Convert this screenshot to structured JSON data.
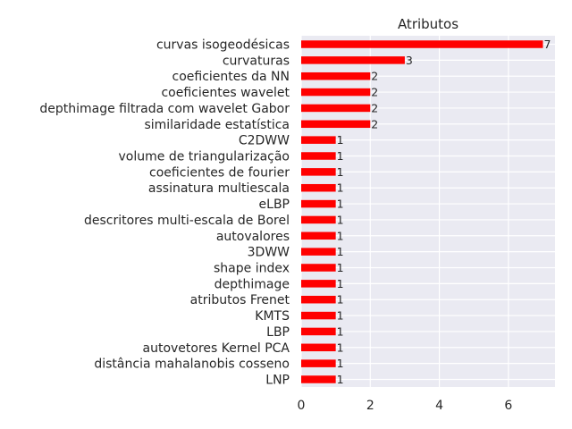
{
  "chart_data": {
    "type": "bar",
    "orientation": "horizontal",
    "title": "Atributos",
    "xlabel": "",
    "ylabel": "",
    "xlim": [
      0,
      7.35
    ],
    "xticks": [
      0,
      2,
      4,
      6
    ],
    "grid": true,
    "categories": [
      "curvas isogeodésicas",
      "curvaturas",
      "coeficientes da NN",
      "coeficientes wavelet",
      "depthimage filtrada com wavelet Gabor",
      "similaridade estatística",
      "C2DWW",
      "volume de triangularização",
      "coeficientes de fourier",
      "assinatura multiescala",
      "eLBP",
      "descritores multi-escala de Borel",
      "autovalores",
      "3DWW",
      "shape index",
      "depthimage",
      "atributos Frenet",
      "KMTS",
      "LBP",
      "autovetores Kernel PCA",
      "distância mahalanobis cosseno",
      "LNP"
    ],
    "values": [
      7,
      3,
      2,
      2,
      2,
      2,
      1,
      1,
      1,
      1,
      1,
      1,
      1,
      1,
      1,
      1,
      1,
      1,
      1,
      1,
      1,
      1
    ],
    "bar_color": "#ff0000",
    "background_color": "#eaeaf2",
    "grid_color": "#ffffff"
  }
}
